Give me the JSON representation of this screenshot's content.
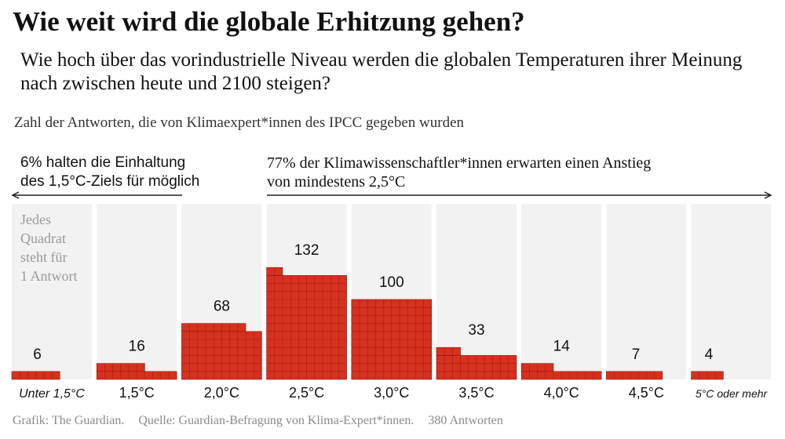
{
  "title": "Wie weit wird die globale Erhitzung gehen?",
  "subtitle": "Wie hoch über das vorindustrielle Niveau werden die globalen Temperaturen ihrer Meinung nach zwischen heute und 2100 steigen?",
  "unit_note": "Zahl der Antworten, die von Klimaexpert*innen des IPCC gegeben wurden",
  "annotations": {
    "left": [
      "6% halten die Einhaltung",
      "des 1,5°C-Ziels für möglich"
    ],
    "right": [
      "77% der Klimawissenschaftler*innen erwarten einen Anstieg",
      "von mindestens 2,5°C"
    ],
    "square_note": [
      "Jedes",
      "Quadrat",
      "steht für",
      "1 Antwort"
    ]
  },
  "source": {
    "graphic": "Grafik:  The Guardian.",
    "origin": "Quelle:  Guardian-Befragung von Klima-Expert*innen.",
    "total": "380 Antworten"
  },
  "colors": {
    "square": "#d7301f",
    "square_border": "#8a1c10",
    "column_bg": "#f2f2f2",
    "grid_line": "#ffffff"
  },
  "chart_data": {
    "type": "bar",
    "categories": [
      "Unter 1,5°C",
      "1,5°C",
      "2,0°C",
      "2,5°C",
      "3,0°C",
      "3,5°C",
      "4,0°C",
      "4,5°C",
      "5°C oder mehr"
    ],
    "values": [
      6,
      16,
      68,
      132,
      100,
      33,
      14,
      7,
      4
    ],
    "value_labels": [
      "6",
      "16",
      "68",
      "132",
      "100",
      "33",
      "14",
      "7",
      "4"
    ],
    "title": "Wie weit wird die globale Erhitzung gehen?",
    "xlabel": "",
    "ylabel": "",
    "total": 380
  }
}
